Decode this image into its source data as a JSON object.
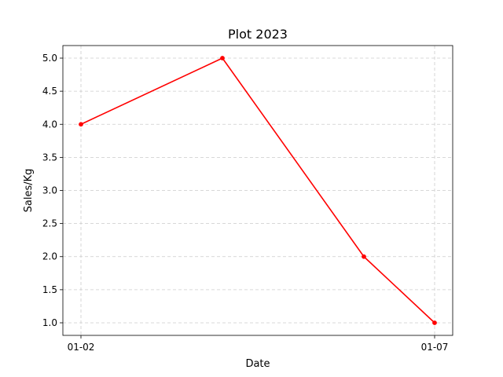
{
  "chart_data": {
    "type": "line",
    "title": "Plot 2023",
    "xlabel": "Date",
    "ylabel": "Sales/Kg",
    "x": [
      "2023-01-02",
      "2023-01-04",
      "2023-01-06",
      "2023-01-07"
    ],
    "x_tick_labels": [
      "01-02",
      "01-07"
    ],
    "series": [
      {
        "values": [
          4.0,
          5.0,
          2.0,
          1.0
        ],
        "color": "#ff0000",
        "marker": "circle"
      }
    ],
    "y_ticks": [
      1.0,
      1.5,
      2.0,
      2.5,
      3.0,
      3.5,
      4.0,
      4.5,
      5.0
    ],
    "y_tick_labels": [
      "1.0",
      "1.5",
      "2.0",
      "2.5",
      "3.0",
      "3.5",
      "4.0",
      "4.5",
      "5.0"
    ],
    "ylim": [
      0.81,
      5.19
    ],
    "grid": true,
    "grid_style": "dashed"
  }
}
